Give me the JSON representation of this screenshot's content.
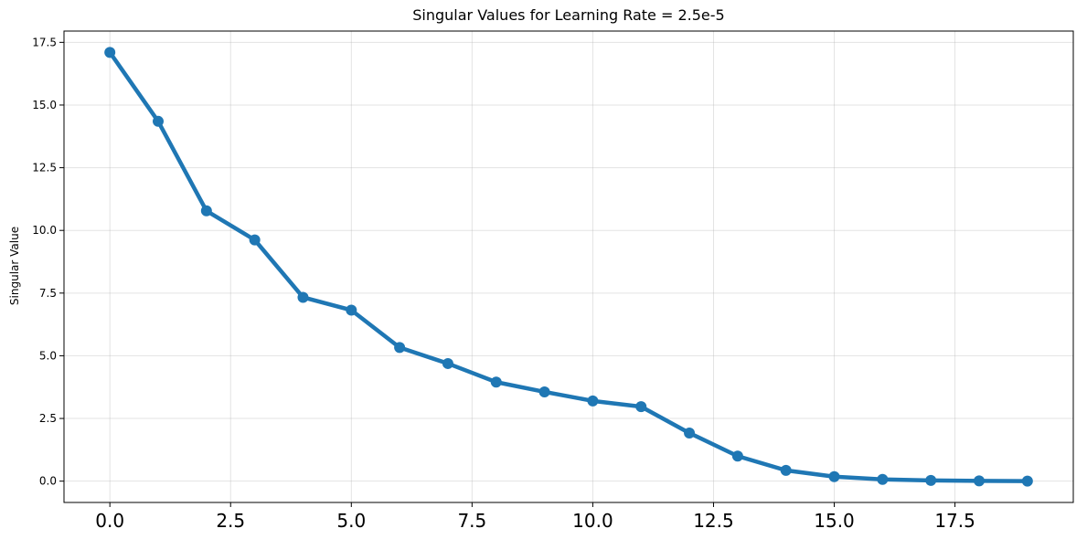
{
  "chart_data": {
    "type": "line",
    "title": "Singular Values for Learning Rate = 2.5e-5",
    "xlabel": "",
    "ylabel": "Singular Value",
    "xlim": [
      -0.95,
      19.95
    ],
    "ylim": [
      -0.85,
      17.95
    ],
    "x_ticks": [
      0.0,
      2.5,
      5.0,
      7.5,
      10.0,
      12.5,
      15.0,
      17.5
    ],
    "x_tick_labels": [
      "0.0",
      "2.5",
      "5.0",
      "7.5",
      "10.0",
      "12.5",
      "15.0",
      "17.5"
    ],
    "y_ticks": [
      0.0,
      2.5,
      5.0,
      7.5,
      10.0,
      12.5,
      15.0,
      17.5
    ],
    "y_tick_labels": [
      "0.0",
      "2.5",
      "5.0",
      "7.5",
      "10.0",
      "12.5",
      "15.0",
      "17.5"
    ],
    "grid": true,
    "color": "#1f77b4",
    "series": [
      {
        "x": [
          0,
          1,
          2,
          3,
          4,
          5,
          6,
          7,
          8,
          9,
          10,
          11,
          12,
          13,
          14,
          15,
          16,
          17,
          18,
          19
        ],
        "values": [
          17.1,
          14.35,
          10.78,
          9.62,
          7.33,
          6.82,
          5.33,
          4.69,
          3.95,
          3.56,
          3.2,
          2.97,
          1.92,
          1.0,
          0.43,
          0.18,
          0.07,
          0.03,
          0.01,
          0.0
        ]
      }
    ]
  }
}
